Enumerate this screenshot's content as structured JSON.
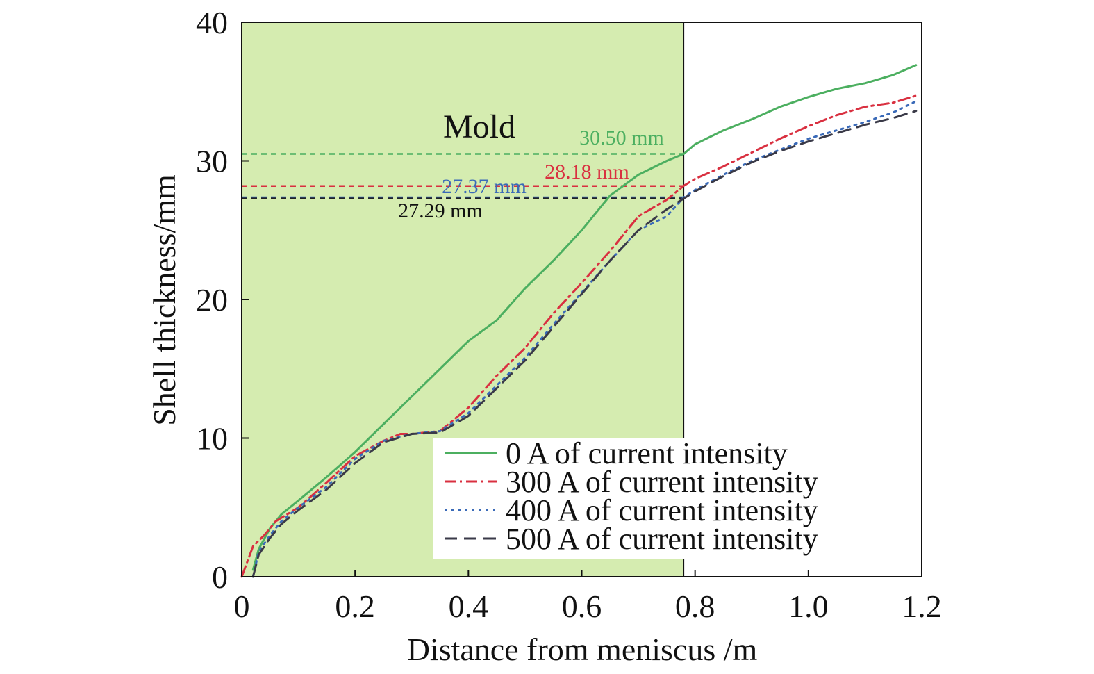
{
  "chart_data": {
    "type": "line",
    "xlabel": "Distance from meniscus /m",
    "ylabel": "Shell thickness/mm",
    "xlim": [
      0,
      1.2
    ],
    "ylim": [
      0,
      40
    ],
    "x_ticks": [
      "0",
      "0.2",
      "0.4",
      "0.6",
      "0.8",
      "1.0",
      "1.2"
    ],
    "y_ticks": [
      "0",
      "10",
      "20",
      "30",
      "40"
    ],
    "grid": false,
    "legend_position": "bottom-right",
    "region": {
      "label": "Mold",
      "x_start": 0,
      "x_end": 0.78,
      "color": "#d5ecb0"
    },
    "series": [
      {
        "name": "0 A of current intensity",
        "color": "#4caf60",
        "dash": "solid",
        "x": [
          0.02,
          0.03,
          0.05,
          0.07,
          0.1,
          0.15,
          0.2,
          0.25,
          0.3,
          0.35,
          0.4,
          0.45,
          0.5,
          0.55,
          0.6,
          0.65,
          0.7,
          0.75,
          0.78,
          0.8,
          0.85,
          0.9,
          0.95,
          1.0,
          1.05,
          1.1,
          1.15,
          1.19
        ],
        "y": [
          0.5,
          2.0,
          3.5,
          4.5,
          5.5,
          7.2,
          9.0,
          11.0,
          13.0,
          15.0,
          17.0,
          18.5,
          20.8,
          22.8,
          25.0,
          27.5,
          29.0,
          30.0,
          30.5,
          31.2,
          32.2,
          33.0,
          33.9,
          34.6,
          35.2,
          35.6,
          36.2,
          36.9
        ]
      },
      {
        "name": "300 A of current intensity",
        "color": "#d93040",
        "dash": "dashdot",
        "x": [
          0.0,
          0.02,
          0.04,
          0.06,
          0.1,
          0.15,
          0.2,
          0.25,
          0.28,
          0.3,
          0.35,
          0.4,
          0.45,
          0.5,
          0.55,
          0.6,
          0.65,
          0.7,
          0.75,
          0.78,
          0.8,
          0.85,
          0.9,
          0.95,
          1.0,
          1.05,
          1.1,
          1.15,
          1.19
        ],
        "y": [
          0.0,
          2.2,
          3.0,
          4.0,
          5.0,
          6.8,
          8.7,
          9.8,
          10.3,
          10.3,
          10.5,
          12.2,
          14.5,
          16.5,
          19.0,
          21.2,
          23.5,
          26.0,
          27.2,
          28.2,
          28.7,
          29.6,
          30.6,
          31.6,
          32.5,
          33.3,
          33.9,
          34.2,
          34.7
        ]
      },
      {
        "name": "400 A of current intensity",
        "color": "#3a6ab8",
        "dash": "dotted",
        "x": [
          0.02,
          0.03,
          0.05,
          0.07,
          0.1,
          0.15,
          0.2,
          0.25,
          0.3,
          0.35,
          0.4,
          0.45,
          0.5,
          0.55,
          0.6,
          0.65,
          0.7,
          0.75,
          0.78,
          0.8,
          0.85,
          0.9,
          0.95,
          1.0,
          1.05,
          1.1,
          1.15,
          1.19
        ],
        "y": [
          0.0,
          1.8,
          3.0,
          4.0,
          5.0,
          6.5,
          8.5,
          9.8,
          10.3,
          10.5,
          11.8,
          13.8,
          15.8,
          18.2,
          20.5,
          22.8,
          25.0,
          26.0,
          27.37,
          27.9,
          29.0,
          30.0,
          30.8,
          31.6,
          32.2,
          32.8,
          33.5,
          34.3
        ]
      },
      {
        "name": "500 A of current intensity",
        "color": "#3a3a48",
        "dash": "dashed",
        "x": [
          0.02,
          0.03,
          0.05,
          0.07,
          0.1,
          0.15,
          0.2,
          0.25,
          0.3,
          0.35,
          0.4,
          0.45,
          0.5,
          0.55,
          0.6,
          0.65,
          0.7,
          0.75,
          0.78,
          0.8,
          0.85,
          0.9,
          0.95,
          1.0,
          1.05,
          1.1,
          1.15,
          1.19
        ],
        "y": [
          0.0,
          1.6,
          2.8,
          3.8,
          4.8,
          6.3,
          8.2,
          9.7,
          10.3,
          10.4,
          11.6,
          13.6,
          15.6,
          18.0,
          20.4,
          22.8,
          25.0,
          26.5,
          27.29,
          27.8,
          28.9,
          29.9,
          30.7,
          31.4,
          32.0,
          32.6,
          33.1,
          33.6
        ]
      }
    ],
    "reference_lines": [
      {
        "y": 30.5,
        "label": "30.50 mm",
        "color": "#4caf60"
      },
      {
        "y": 28.18,
        "label": "28.18 mm",
        "color": "#d93040"
      },
      {
        "y": 27.37,
        "label": "27.37 mm",
        "color": "#3a6ab8"
      },
      {
        "y": 27.29,
        "label": "27.29 mm",
        "color": "#222222"
      }
    ]
  }
}
